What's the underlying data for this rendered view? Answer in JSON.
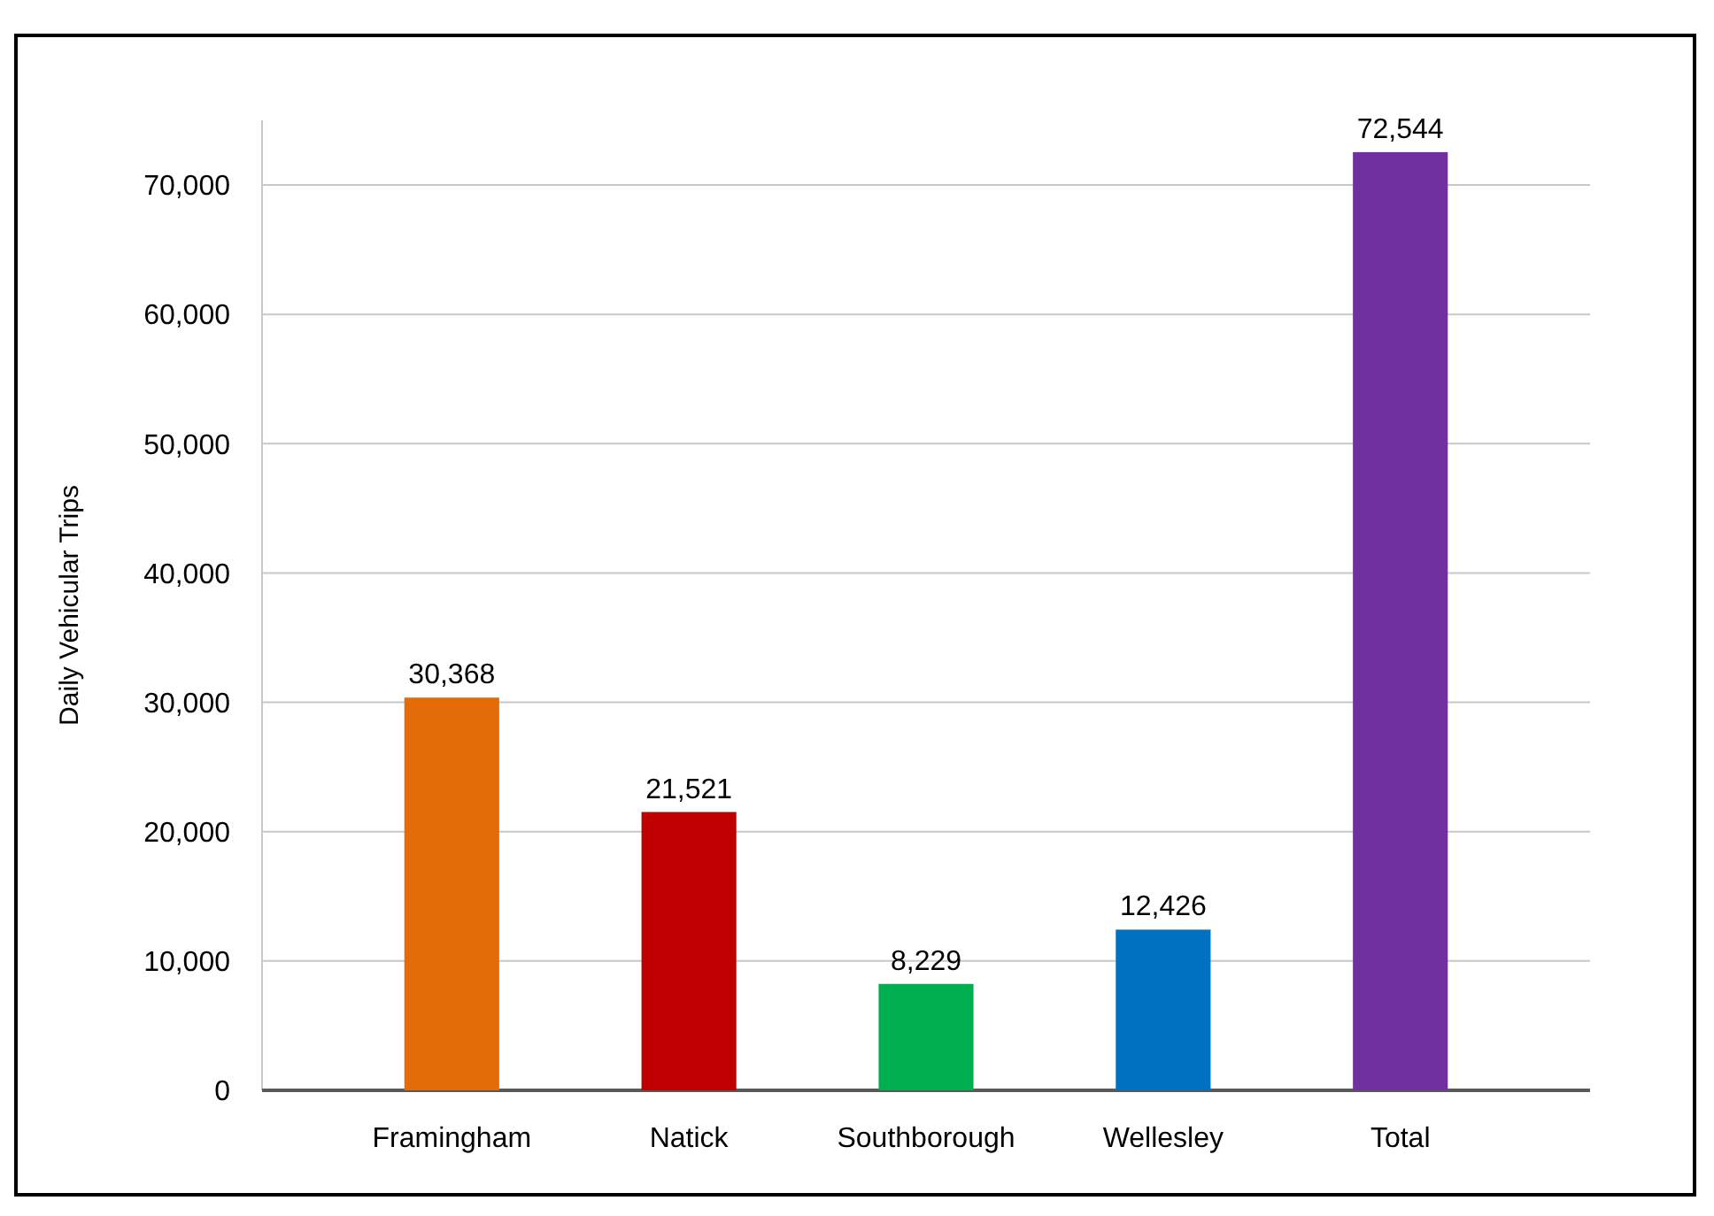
{
  "chart_data": {
    "type": "bar",
    "ylabel": "Daily Vehicular Trips",
    "categories": [
      "Framingham",
      "Natick",
      "Southborough",
      "Wellesley",
      "Total"
    ],
    "values": [
      30368,
      21521,
      8229,
      12426,
      72544
    ],
    "colors": [
      "#e36c09",
      "#c00000",
      "#00b050",
      "#0070c0",
      "#7030a0"
    ],
    "ylim": [
      0,
      75000
    ],
    "yticks": [
      {
        "value": 0,
        "label": "0"
      },
      {
        "value": 10000,
        "label": "10,000"
      },
      {
        "value": 20000,
        "label": "20,000"
      },
      {
        "value": 30000,
        "label": "30,000"
      },
      {
        "value": 40000,
        "label": "40,000"
      },
      {
        "value": 50000,
        "label": "50,000"
      },
      {
        "value": 60000,
        "label": "60,000"
      },
      {
        "value": 70000,
        "label": "70,000"
      }
    ],
    "value_labels": [
      "30,368",
      "21,521",
      "8,229",
      "12,426",
      "72,544"
    ],
    "grid": "y"
  }
}
